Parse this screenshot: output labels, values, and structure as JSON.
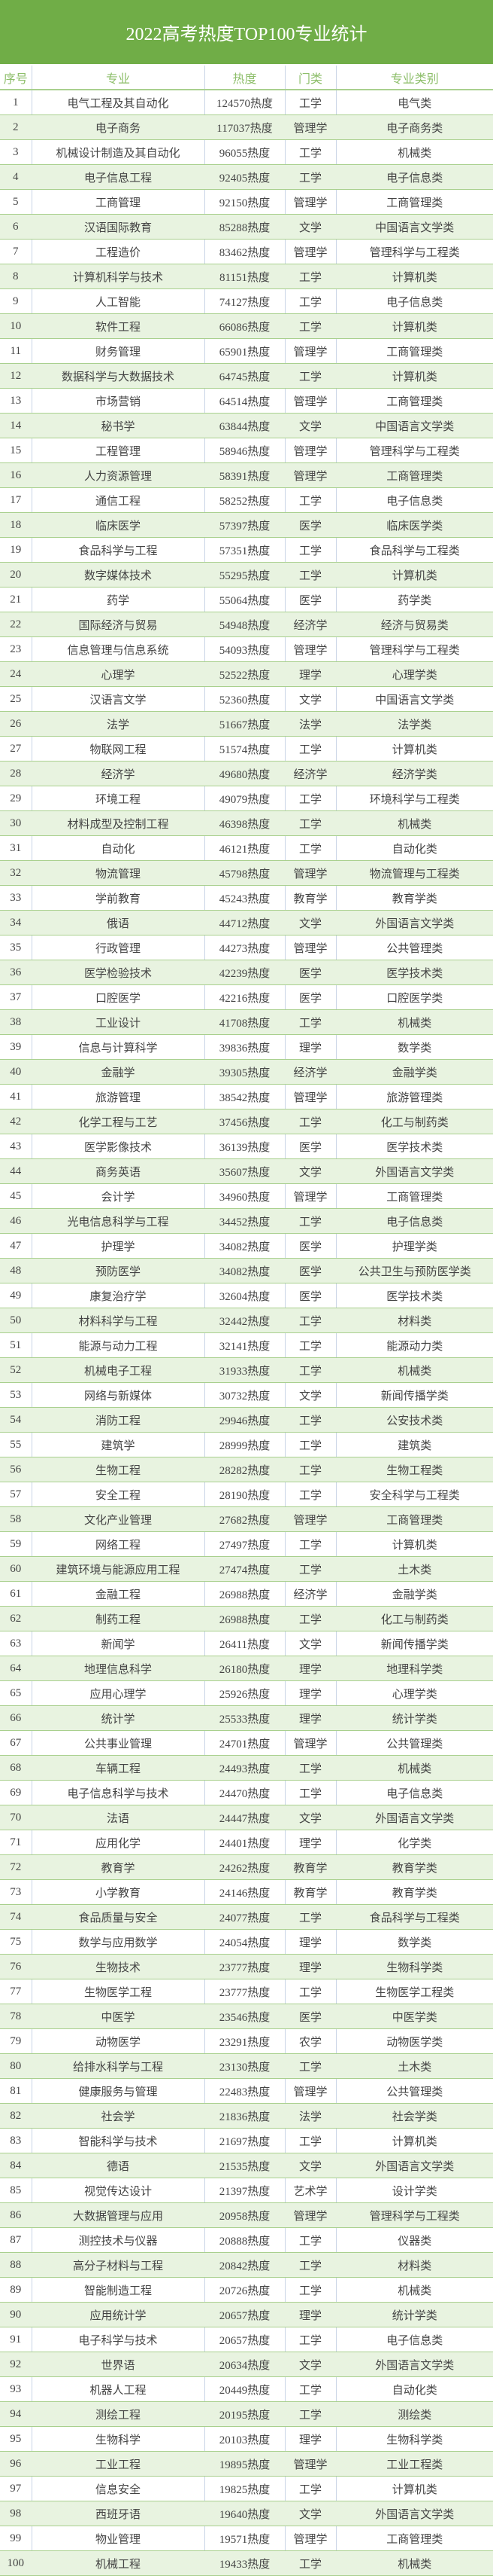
{
  "title": "2022高考热度TOP100专业统计",
  "colors": {
    "title_bg": "#70AD47",
    "alt_row": "#E8F3E0",
    "header_text": "#8DBE6A",
    "border": "#A9D08E"
  },
  "columns": [
    "序号",
    "专业",
    "热度",
    "门类",
    "专业类别"
  ],
  "rows": [
    [
      "1",
      "电气工程及其自动化",
      "124570热度",
      "工学",
      "电气类"
    ],
    [
      "2",
      "电子商务",
      "117037热度",
      "管理学",
      "电子商务类"
    ],
    [
      "3",
      "机械设计制造及其自动化",
      "96055热度",
      "工学",
      "机械类"
    ],
    [
      "4",
      "电子信息工程",
      "92405热度",
      "工学",
      "电子信息类"
    ],
    [
      "5",
      "工商管理",
      "92150热度",
      "管理学",
      "工商管理类"
    ],
    [
      "6",
      "汉语国际教育",
      "85288热度",
      "文学",
      "中国语言文学类"
    ],
    [
      "7",
      "工程造价",
      "83462热度",
      "管理学",
      "管理科学与工程类"
    ],
    [
      "8",
      "计算机科学与技术",
      "81151热度",
      "工学",
      "计算机类"
    ],
    [
      "9",
      "人工智能",
      "74127热度",
      "工学",
      "电子信息类"
    ],
    [
      "10",
      "软件工程",
      "66086热度",
      "工学",
      "计算机类"
    ],
    [
      "11",
      "财务管理",
      "65901热度",
      "管理学",
      "工商管理类"
    ],
    [
      "12",
      "数据科学与大数据技术",
      "64745热度",
      "工学",
      "计算机类"
    ],
    [
      "13",
      "市场营销",
      "64514热度",
      "管理学",
      "工商管理类"
    ],
    [
      "14",
      "秘书学",
      "63844热度",
      "文学",
      "中国语言文学类"
    ],
    [
      "15",
      "工程管理",
      "58946热度",
      "管理学",
      "管理科学与工程类"
    ],
    [
      "16",
      "人力资源管理",
      "58391热度",
      "管理学",
      "工商管理类"
    ],
    [
      "17",
      "通信工程",
      "58252热度",
      "工学",
      "电子信息类"
    ],
    [
      "18",
      "临床医学",
      "57397热度",
      "医学",
      "临床医学类"
    ],
    [
      "19",
      "食品科学与工程",
      "57351热度",
      "工学",
      "食品科学与工程类"
    ],
    [
      "20",
      "数字媒体技术",
      "55295热度",
      "工学",
      "计算机类"
    ],
    [
      "21",
      "药学",
      "55064热度",
      "医学",
      "药学类"
    ],
    [
      "22",
      "国际经济与贸易",
      "54948热度",
      "经济学",
      "经济与贸易类"
    ],
    [
      "23",
      "信息管理与信息系统",
      "54093热度",
      "管理学",
      "管理科学与工程类"
    ],
    [
      "24",
      "心理学",
      "52522热度",
      "理学",
      "心理学类"
    ],
    [
      "25",
      "汉语言文学",
      "52360热度",
      "文学",
      "中国语言文学类"
    ],
    [
      "26",
      "法学",
      "51667热度",
      "法学",
      "法学类"
    ],
    [
      "27",
      "物联网工程",
      "51574热度",
      "工学",
      "计算机类"
    ],
    [
      "28",
      "经济学",
      "49680热度",
      "经济学",
      "经济学类"
    ],
    [
      "29",
      "环境工程",
      "49079热度",
      "工学",
      "环境科学与工程类"
    ],
    [
      "30",
      "材料成型及控制工程",
      "46398热度",
      "工学",
      "机械类"
    ],
    [
      "31",
      "自动化",
      "46121热度",
      "工学",
      "自动化类"
    ],
    [
      "32",
      "物流管理",
      "45798热度",
      "管理学",
      "物流管理与工程类"
    ],
    [
      "33",
      "学前教育",
      "45243热度",
      "教育学",
      "教育学类"
    ],
    [
      "34",
      "俄语",
      "44712热度",
      "文学",
      "外国语言文学类"
    ],
    [
      "35",
      "行政管理",
      "44273热度",
      "管理学",
      "公共管理类"
    ],
    [
      "36",
      "医学检验技术",
      "42239热度",
      "医学",
      "医学技术类"
    ],
    [
      "37",
      "口腔医学",
      "42216热度",
      "医学",
      "口腔医学类"
    ],
    [
      "38",
      "工业设计",
      "41708热度",
      "工学",
      "机械类"
    ],
    [
      "39",
      "信息与计算科学",
      "39836热度",
      "理学",
      "数学类"
    ],
    [
      "40",
      "金融学",
      "39305热度",
      "经济学",
      "金融学类"
    ],
    [
      "41",
      "旅游管理",
      "38542热度",
      "管理学",
      "旅游管理类"
    ],
    [
      "42",
      "化学工程与工艺",
      "37456热度",
      "工学",
      "化工与制药类"
    ],
    [
      "43",
      "医学影像技术",
      "36139热度",
      "医学",
      "医学技术类"
    ],
    [
      "44",
      "商务英语",
      "35607热度",
      "文学",
      "外国语言文学类"
    ],
    [
      "45",
      "会计学",
      "34960热度",
      "管理学",
      "工商管理类"
    ],
    [
      "46",
      "光电信息科学与工程",
      "34452热度",
      "工学",
      "电子信息类"
    ],
    [
      "47",
      "护理学",
      "34082热度",
      "医学",
      "护理学类"
    ],
    [
      "48",
      "预防医学",
      "34082热度",
      "医学",
      "公共卫生与预防医学类"
    ],
    [
      "49",
      "康复治疗学",
      "32604热度",
      "医学",
      "医学技术类"
    ],
    [
      "50",
      "材料科学与工程",
      "32442热度",
      "工学",
      "材料类"
    ],
    [
      "51",
      "能源与动力工程",
      "32141热度",
      "工学",
      "能源动力类"
    ],
    [
      "52",
      "机械电子工程",
      "31933热度",
      "工学",
      "机械类"
    ],
    [
      "53",
      "网络与新媒体",
      "30732热度",
      "文学",
      "新闻传播学类"
    ],
    [
      "54",
      "消防工程",
      "29946热度",
      "工学",
      "公安技术类"
    ],
    [
      "55",
      "建筑学",
      "28999热度",
      "工学",
      "建筑类"
    ],
    [
      "56",
      "生物工程",
      "28282热度",
      "工学",
      "生物工程类"
    ],
    [
      "57",
      "安全工程",
      "28190热度",
      "工学",
      "安全科学与工程类"
    ],
    [
      "58",
      "文化产业管理",
      "27682热度",
      "管理学",
      "工商管理类"
    ],
    [
      "59",
      "网络工程",
      "27497热度",
      "工学",
      "计算机类"
    ],
    [
      "60",
      "建筑环境与能源应用工程",
      "27474热度",
      "工学",
      "土木类"
    ],
    [
      "61",
      "金融工程",
      "26988热度",
      "经济学",
      "金融学类"
    ],
    [
      "62",
      "制药工程",
      "26988热度",
      "工学",
      "化工与制药类"
    ],
    [
      "63",
      "新闻学",
      "26411热度",
      "文学",
      "新闻传播学类"
    ],
    [
      "64",
      "地理信息科学",
      "26180热度",
      "理学",
      "地理科学类"
    ],
    [
      "65",
      "应用心理学",
      "25926热度",
      "理学",
      "心理学类"
    ],
    [
      "66",
      "统计学",
      "25533热度",
      "理学",
      "统计学类"
    ],
    [
      "67",
      "公共事业管理",
      "24701热度",
      "管理学",
      "公共管理类"
    ],
    [
      "68",
      "车辆工程",
      "24493热度",
      "工学",
      "机械类"
    ],
    [
      "69",
      "电子信息科学与技术",
      "24470热度",
      "工学",
      "电子信息类"
    ],
    [
      "70",
      "法语",
      "24447热度",
      "文学",
      "外国语言文学类"
    ],
    [
      "71",
      "应用化学",
      "24401热度",
      "理学",
      "化学类"
    ],
    [
      "72",
      "教育学",
      "24262热度",
      "教育学",
      "教育学类"
    ],
    [
      "73",
      "小学教育",
      "24146热度",
      "教育学",
      "教育学类"
    ],
    [
      "74",
      "食品质量与安全",
      "24077热度",
      "工学",
      "食品科学与工程类"
    ],
    [
      "75",
      "数学与应用数学",
      "24054热度",
      "理学",
      "数学类"
    ],
    [
      "76",
      "生物技术",
      "23777热度",
      "理学",
      "生物科学类"
    ],
    [
      "77",
      "生物医学工程",
      "23777热度",
      "工学",
      "生物医学工程类"
    ],
    [
      "78",
      "中医学",
      "23546热度",
      "医学",
      "中医学类"
    ],
    [
      "79",
      "动物医学",
      "23291热度",
      "农学",
      "动物医学类"
    ],
    [
      "80",
      "给排水科学与工程",
      "23130热度",
      "工学",
      "土木类"
    ],
    [
      "81",
      "健康服务与管理",
      "22483热度",
      "管理学",
      "公共管理类"
    ],
    [
      "82",
      "社会学",
      "21836热度",
      "法学",
      "社会学类"
    ],
    [
      "83",
      "智能科学与技术",
      "21697热度",
      "工学",
      "计算机类"
    ],
    [
      "84",
      "德语",
      "21535热度",
      "文学",
      "外国语言文学类"
    ],
    [
      "85",
      "视觉传达设计",
      "21397热度",
      "艺术学",
      "设计学类"
    ],
    [
      "86",
      "大数据管理与应用",
      "20958热度",
      "管理学",
      "管理科学与工程类"
    ],
    [
      "87",
      "测控技术与仪器",
      "20888热度",
      "工学",
      "仪器类"
    ],
    [
      "88",
      "高分子材料与工程",
      "20842热度",
      "工学",
      "材料类"
    ],
    [
      "89",
      "智能制造工程",
      "20726热度",
      "工学",
      "机械类"
    ],
    [
      "90",
      "应用统计学",
      "20657热度",
      "理学",
      "统计学类"
    ],
    [
      "91",
      "电子科学与技术",
      "20657热度",
      "工学",
      "电子信息类"
    ],
    [
      "92",
      "世界语",
      "20634热度",
      "文学",
      "外国语言文学类"
    ],
    [
      "93",
      "机器人工程",
      "20449热度",
      "工学",
      "自动化类"
    ],
    [
      "94",
      "测绘工程",
      "20195热度",
      "工学",
      "测绘类"
    ],
    [
      "95",
      "生物科学",
      "20103热度",
      "理学",
      "生物科学类"
    ],
    [
      "96",
      "工业工程",
      "19895热度",
      "管理学",
      "工业工程类"
    ],
    [
      "97",
      "信息安全",
      "19825热度",
      "工学",
      "计算机类"
    ],
    [
      "98",
      "西班牙语",
      "19640热度",
      "文学",
      "外国语言文学类"
    ],
    [
      "99",
      "物业管理",
      "19571热度",
      "管理学",
      "工商管理类"
    ],
    [
      "100",
      "机械工程",
      "19433热度",
      "工学",
      "机械类"
    ]
  ]
}
